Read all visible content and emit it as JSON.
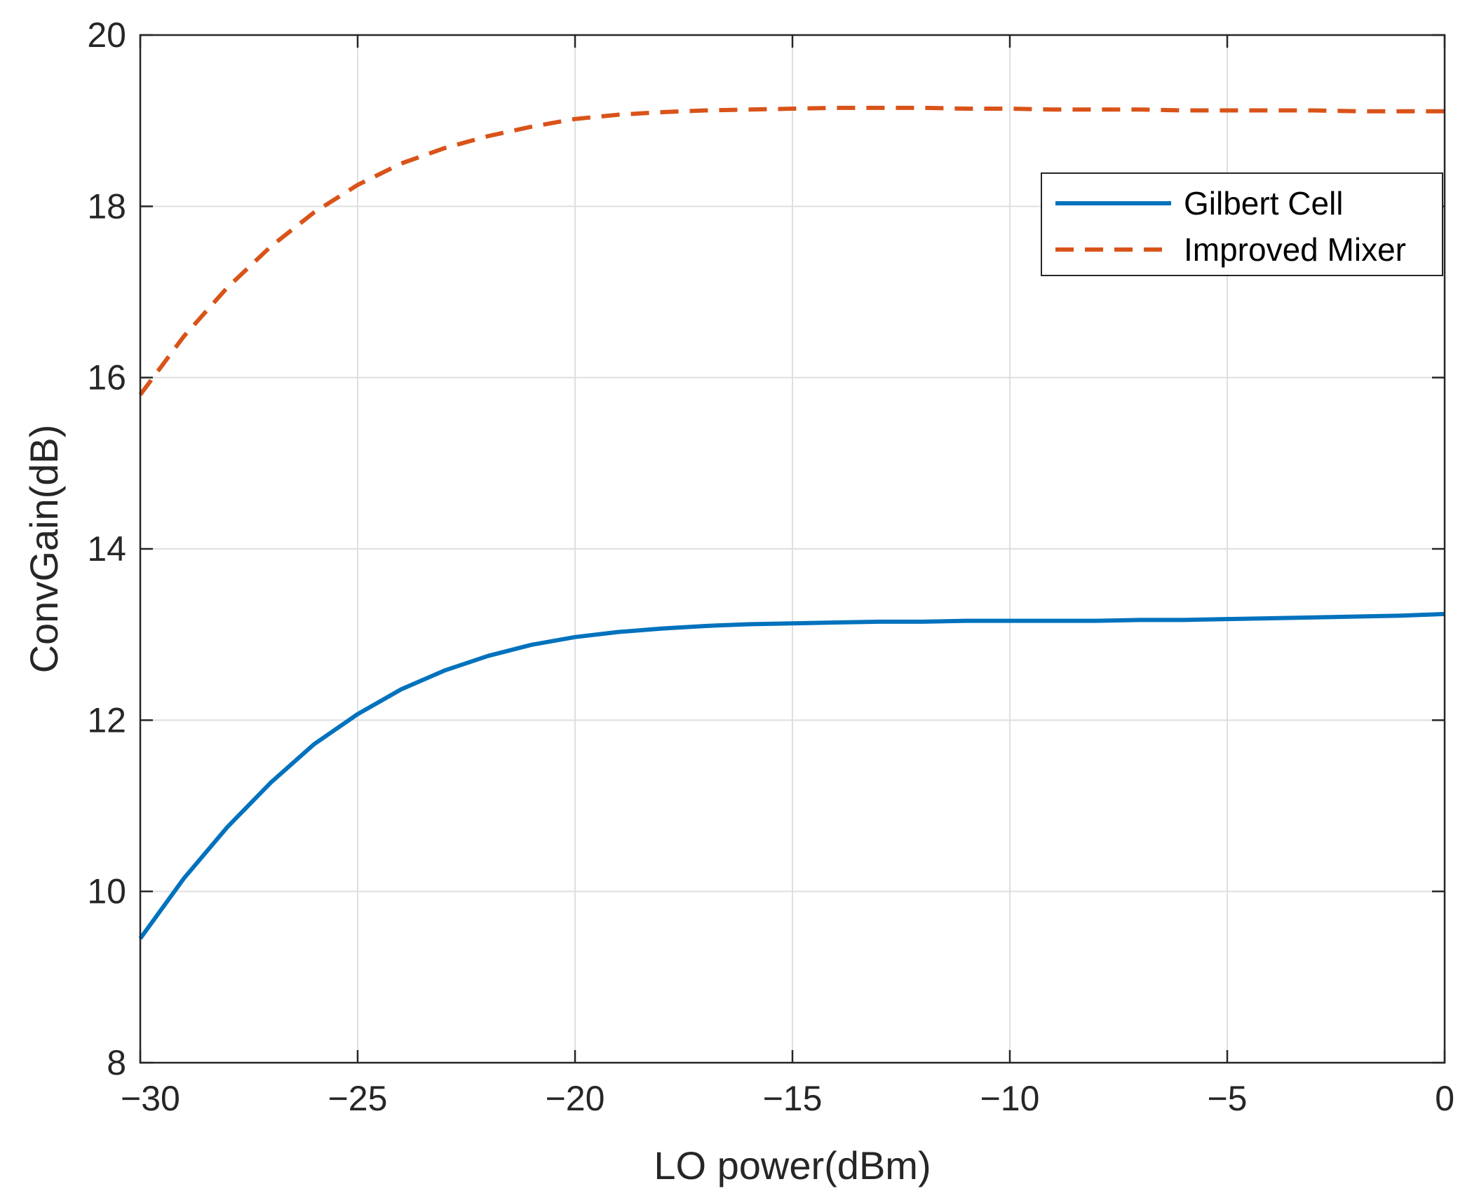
{
  "chart_data": {
    "type": "line",
    "title": "",
    "xlabel": "LO power(dBm)",
    "ylabel": "ConvGain(dB)",
    "xlim": [
      -30,
      0
    ],
    "ylim": [
      8,
      20
    ],
    "xticks": [
      -30,
      -25,
      -20,
      -15,
      -10,
      -5,
      0
    ],
    "yticks": [
      8,
      10,
      12,
      14,
      16,
      18,
      20
    ],
    "xtick_labels": [
      "−30",
      "−25",
      "−20",
      "−15",
      "−10",
      "−5",
      "0"
    ],
    "ytick_labels": [
      "8",
      "10",
      "12",
      "14",
      "16",
      "18",
      "20"
    ],
    "grid": true,
    "legend_position": "top-right",
    "x": [
      -30,
      -29,
      -28,
      -27,
      -26,
      -25,
      -24,
      -23,
      -22,
      -21,
      -20,
      -19,
      -18,
      -17,
      -16,
      -15,
      -14,
      -13,
      -12,
      -11,
      -10,
      -9,
      -8,
      -7,
      -6,
      -5,
      -4,
      -3,
      -2,
      -1,
      0
    ],
    "series": [
      {
        "name": "Gilbert Cell",
        "color": "#0072BD",
        "style": "solid",
        "values": [
          9.45,
          10.15,
          10.75,
          11.27,
          11.72,
          12.07,
          12.36,
          12.58,
          12.75,
          12.88,
          12.97,
          13.03,
          13.07,
          13.1,
          13.12,
          13.13,
          13.14,
          13.15,
          13.15,
          13.16,
          13.16,
          13.16,
          13.16,
          13.17,
          13.17,
          13.18,
          13.19,
          13.2,
          13.21,
          13.22,
          13.24
        ]
      },
      {
        "name": "Improved Mixer",
        "color": "#D95319",
        "style": "dashed",
        "values": [
          15.8,
          16.48,
          17.05,
          17.53,
          17.93,
          18.25,
          18.5,
          18.68,
          18.82,
          18.93,
          19.02,
          19.07,
          19.1,
          19.12,
          19.13,
          19.14,
          19.15,
          19.15,
          19.15,
          19.14,
          19.14,
          19.13,
          19.13,
          19.13,
          19.12,
          19.12,
          19.12,
          19.12,
          19.11,
          19.11,
          19.11
        ]
      }
    ]
  }
}
